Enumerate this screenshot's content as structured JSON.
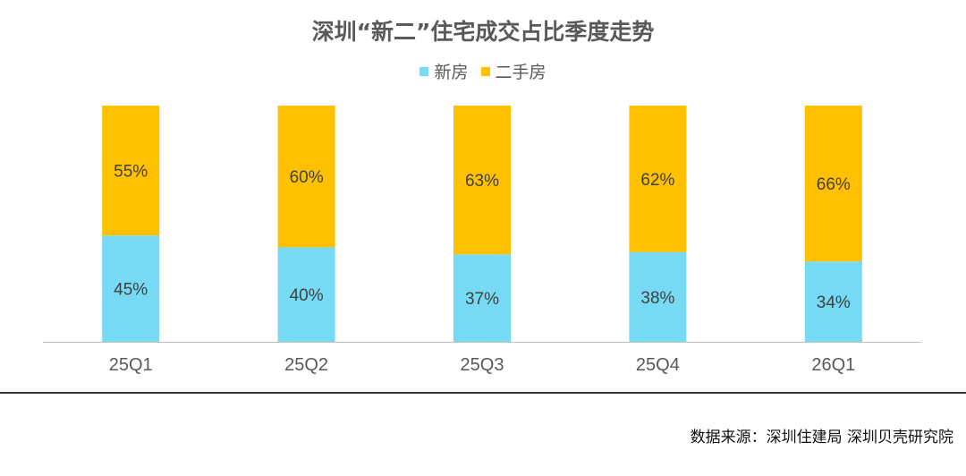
{
  "title": "深圳“新二”住宅成交占比季度走势",
  "source": "数据来源：深圳住建局 深圳贝壳研究院",
  "colors": {
    "new": "#76DAF5",
    "second": "#FFC000"
  },
  "chart_data": {
    "type": "bar",
    "stacked": true,
    "categories": [
      "25Q1",
      "25Q2",
      "25Q3",
      "25Q4",
      "26Q1"
    ],
    "series": [
      {
        "name": "新房",
        "values": [
          45,
          40,
          37,
          38,
          34
        ],
        "labels": [
          "45%",
          "40%",
          "37%",
          "38%",
          "34%"
        ]
      },
      {
        "name": "二手房",
        "values": [
          55,
          60,
          63,
          62,
          66
        ],
        "labels": [
          "55%",
          "60%",
          "63%",
          "62%",
          "66%"
        ]
      }
    ],
    "ylim": [
      0,
      100
    ],
    "legend_position": "top-center",
    "grid": false
  }
}
